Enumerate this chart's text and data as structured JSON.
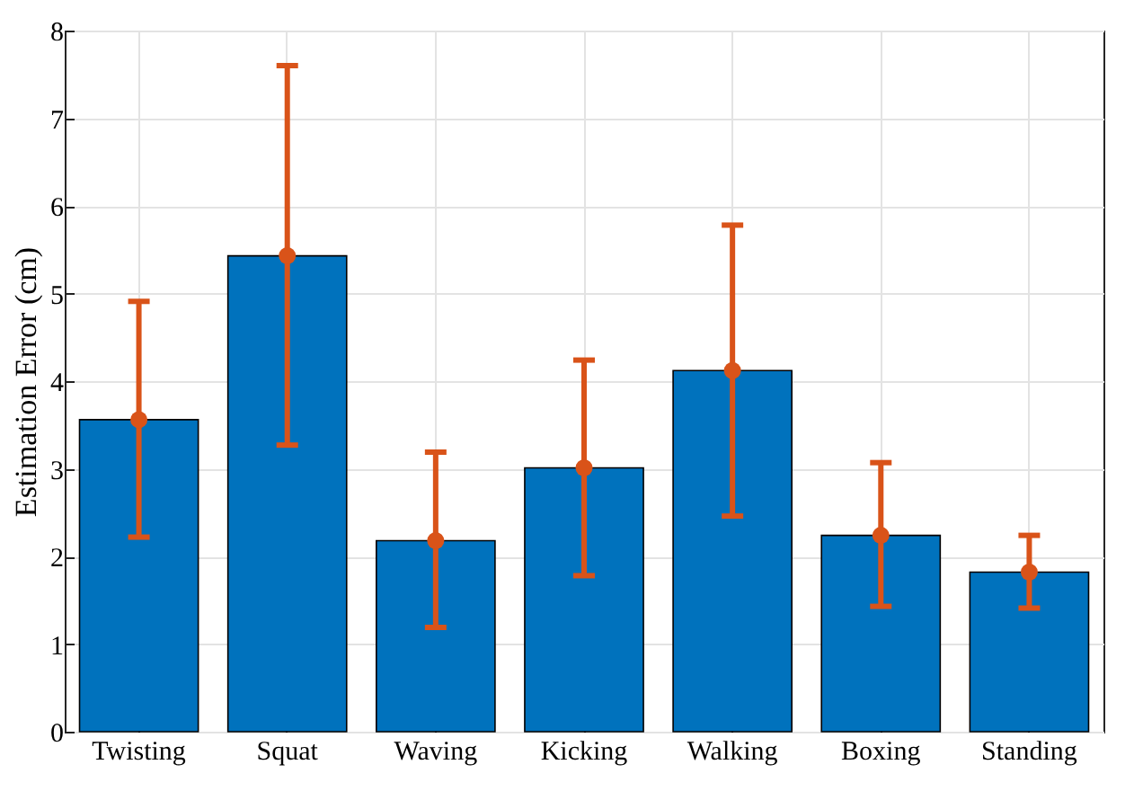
{
  "chart_data": {
    "type": "bar",
    "ylabel": "Estimation Error (cm)",
    "categories": [
      "Twisting",
      "Squat",
      "Waving",
      "Kicking",
      "Walking",
      "Boxing",
      "Standing"
    ],
    "series": [
      {
        "color": "#0072bd",
        "values": [
          3.56,
          5.43,
          2.18,
          3.01,
          4.12,
          2.24,
          1.82
        ],
        "errors": [
          [
            2.22,
            4.91
          ],
          [
            3.27,
            7.6
          ],
          [
            1.19,
            3.19
          ],
          [
            1.78,
            4.24
          ],
          [
            2.46,
            5.78
          ],
          [
            1.43,
            3.07
          ],
          [
            1.41,
            2.24
          ]
        ]
      },
      {
        "type": "scatter",
        "color": "#d95319",
        "marker": "circle",
        "x": [
          "Twisting",
          "Squat",
          "Waving",
          "Kicking",
          "Walking",
          "Boxing",
          "Standing"
        ],
        "values": [
          3.56,
          5.43,
          2.18,
          3.01,
          4.12,
          2.24,
          1.82
        ]
      }
    ],
    "ylim": [
      0,
      8
    ],
    "yticks": [
      0,
      1,
      2,
      3,
      4,
      5,
      6,
      7,
      8
    ],
    "grid": true
  }
}
